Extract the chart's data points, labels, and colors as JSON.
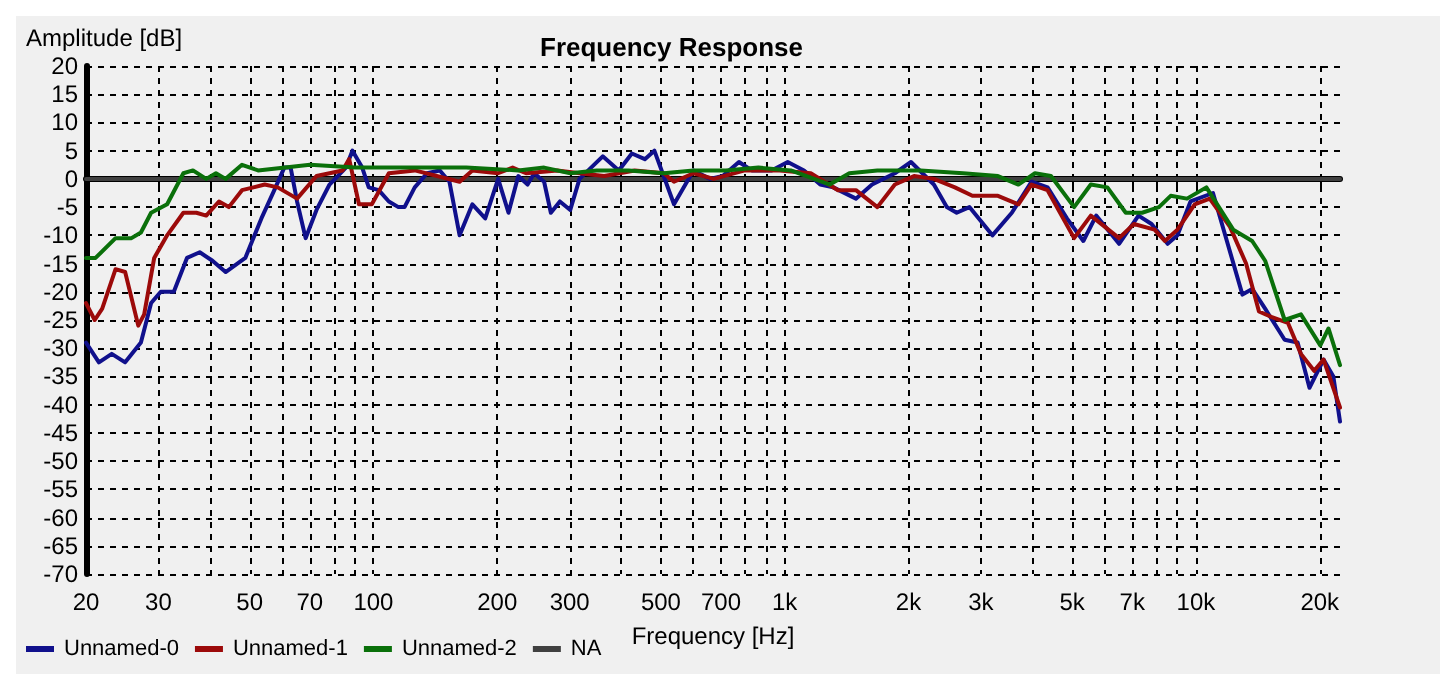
{
  "chart_data": {
    "type": "line",
    "title": "Frequency Response",
    "xlabel": "Frequency [Hz]",
    "ylabel": "Amplitude [dB]",
    "log": "x",
    "grid": true,
    "legend": "bottom left",
    "marker": "none",
    "line_style": "solid",
    "xlim": [
      20,
      22400
    ],
    "ylim": [
      -70,
      20
    ],
    "xticks": [
      20,
      30,
      {
        "value": 40,
        "label": null
      },
      50,
      {
        "value": 60,
        "label": null
      },
      70,
      {
        "value": 80,
        "label": null
      },
      {
        "value": 90,
        "label": null
      },
      100,
      200,
      300,
      {
        "value": 400,
        "label": null
      },
      500,
      {
        "value": 600,
        "label": null
      },
      700,
      {
        "value": 800,
        "label": null
      },
      {
        "value": 900,
        "label": null
      },
      {
        "value": 1000,
        "label": "1k"
      },
      {
        "value": 2000,
        "label": "2k"
      },
      {
        "value": 3000,
        "label": "3k"
      },
      {
        "value": 4000,
        "label": null
      },
      {
        "value": 5000,
        "label": "5k"
      },
      {
        "value": 6000,
        "label": null
      },
      {
        "value": 7000,
        "label": "7k"
      },
      {
        "value": 8000,
        "label": null
      },
      {
        "value": 9000,
        "label": null
      },
      {
        "value": 10000,
        "label": "10k"
      },
      {
        "value": 20000,
        "label": "20k"
      }
    ],
    "yticks": [
      -70,
      -65,
      -60,
      -55,
      -50,
      -45,
      -40,
      -35,
      -30,
      -25,
      -20,
      -15,
      -10,
      -5,
      0,
      5,
      10,
      15,
      20
    ],
    "series": [
      {
        "name": "Unnamed-0",
        "color": "#10108c",
        "x": [
          20,
          21.5,
          23.1,
          24.9,
          27.2,
          28.8,
          30.4,
          32.7,
          35.2,
          37.8,
          40.6,
          43.7,
          48.8,
          53.4,
          57.4,
          60.7,
          62.9,
          65.2,
          68.4,
          72.7,
          78.2,
          85.7,
          88.9,
          93.9,
          97.4,
          103,
          109,
          115,
          119,
          126,
          135,
          145,
          153,
          162,
          174,
          187,
          201,
          213,
          225,
          237,
          246,
          260,
          270,
          284,
          301,
          317,
          361,
          395,
          425,
          457,
          482,
          538,
          600,
          658,
          707,
          774,
          832,
          929,
          1017,
          1114,
          1220,
          1312,
          1490,
          1631,
          1853,
          2028,
          2305,
          2478,
          2619,
          2813,
          3199,
          3567,
          3980,
          4357,
          4855,
          5323,
          5720,
          6502,
          7248,
          7799,
          8534,
          9015,
          9700,
          11000,
          12970,
          13700,
          14730,
          16430,
          17670,
          18880,
          20430,
          21580,
          22400
        ],
        "values": [
          -29,
          -32.5,
          -31,
          -32.5,
          -29,
          -22,
          -20,
          -20,
          -14,
          -13,
          -14.5,
          -16.5,
          -14,
          -7,
          -2,
          2,
          2,
          -4,
          -10.5,
          -5.5,
          -1,
          2,
          5,
          2,
          -1.5,
          -2,
          -4,
          -5,
          -5,
          -1.5,
          1,
          1.5,
          -0.5,
          -10,
          -4.5,
          -7,
          0,
          -6,
          0.5,
          -1,
          1,
          -0.5,
          -6,
          -4,
          -5.5,
          0,
          4,
          1.5,
          4.5,
          3.5,
          5,
          -4.5,
          1.5,
          0,
          0.5,
          3,
          1.5,
          1.5,
          3,
          1.5,
          -1,
          -1.5,
          -3.5,
          -1,
          1,
          3,
          -1,
          -5,
          -6,
          -5,
          -10,
          -6,
          -0.5,
          -1.5,
          -7,
          -11,
          -6.5,
          -11.5,
          -6.5,
          -8,
          -11.5,
          -10,
          -4,
          -2.5,
          -20.5,
          -19.5,
          -23,
          -28.5,
          -29,
          -37,
          -32,
          -35,
          -43
        ]
      },
      {
        "name": "Unnamed-1",
        "color": "#9c0a0a",
        "x": [
          20,
          21,
          21.9,
          23.6,
          24.9,
          26.8,
          27.7,
          29.3,
          31.5,
          34.5,
          37.1,
          39.2,
          42.1,
          44.5,
          47.9,
          54.4,
          58.5,
          65.2,
          72.7,
          84.1,
          87.3,
          92.2,
          99.1,
          109,
          126,
          162,
          174,
          201,
          218,
          235,
          280,
          317,
          364,
          432,
          508,
          538,
          600,
          672,
          800,
          972,
          1157,
          1348,
          1490,
          1680,
          1853,
          2063,
          2305,
          2593,
          2860,
          3300,
          3700,
          3980,
          4357,
          5055,
          5550,
          6502,
          7065,
          7930,
          8400,
          9015,
          9930,
          10800,
          12100,
          13240,
          14230,
          15300,
          16730,
          18000,
          19380,
          20430,
          22400
        ],
        "values": [
          -22,
          -25,
          -23,
          -16,
          -16.5,
          -26,
          -24,
          -14,
          -10,
          -6,
          -6,
          -6.5,
          -4,
          -5,
          -2,
          -1,
          -1.5,
          -3.5,
          0.5,
          1.5,
          3.5,
          -4.5,
          -4.5,
          1,
          1.5,
          -0.5,
          1.5,
          1,
          2,
          1,
          1.5,
          1,
          0.5,
          1.5,
          1,
          -0.5,
          1,
          0,
          1.5,
          1.5,
          1,
          -2,
          -2,
          -5,
          -1,
          0.5,
          0,
          -1.5,
          -3,
          -3,
          -4.5,
          -1,
          -2,
          -10.5,
          -6.5,
          -10.5,
          -8,
          -9,
          -11,
          -9,
          -4.5,
          -3.5,
          -8.5,
          -15,
          -23.5,
          -24.5,
          -25.5,
          -31,
          -34,
          -32,
          -40.5
        ]
      },
      {
        "name": "Unnamed-2",
        "color": "#0a700a",
        "x": [
          20,
          21.1,
          23.6,
          25.8,
          27.2,
          28.8,
          31.5,
          34.5,
          36.4,
          39.2,
          41.4,
          43.7,
          47.9,
          52.4,
          70.1,
          90.4,
          121,
          168,
          225,
          260,
          301,
          349,
          417,
          508,
          600,
          720,
          863,
          1035,
          1287,
          1436,
          1680,
          2140,
          2715,
          3300,
          3700,
          4060,
          4440,
          5055,
          5550,
          6090,
          6750,
          7400,
          8130,
          8680,
          9510,
          10600,
          12320,
          13700,
          14730,
          16430,
          18000,
          20060,
          21000,
          22400
        ],
        "values": [
          -14,
          -14,
          -10.5,
          -10.5,
          -9.5,
          -6,
          -4.5,
          1,
          1.5,
          0,
          1,
          0,
          2.5,
          1.5,
          2.5,
          2,
          2,
          2,
          1.5,
          2,
          1,
          1.5,
          1.5,
          1,
          1.5,
          1.5,
          2,
          1.5,
          -1,
          1,
          1.5,
          1.5,
          1,
          0.5,
          -1,
          1,
          0.5,
          -5,
          -1,
          -1.5,
          -6,
          -6,
          -5,
          -3,
          -3.5,
          -1.5,
          -9,
          -11,
          -14.5,
          -25,
          -24,
          -29.5,
          -26.5,
          -33
        ]
      },
      {
        "name": "NA",
        "color": "#404040",
        "x": [
          20,
          22400
        ],
        "values": [
          0,
          0
        ]
      }
    ]
  }
}
